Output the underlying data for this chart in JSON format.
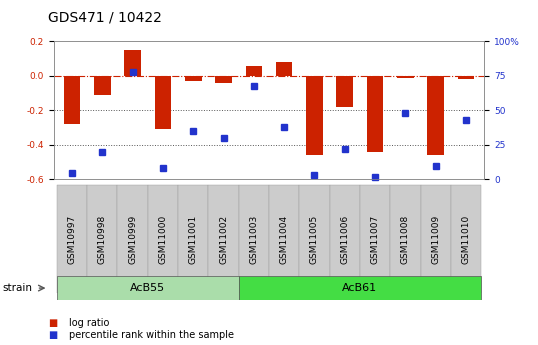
{
  "title": "GDS471 / 10422",
  "samples": [
    "GSM10997",
    "GSM10998",
    "GSM10999",
    "GSM11000",
    "GSM11001",
    "GSM11002",
    "GSM11003",
    "GSM11004",
    "GSM11005",
    "GSM11006",
    "GSM11007",
    "GSM11008",
    "GSM11009",
    "GSM11010"
  ],
  "log_ratio": [
    -0.28,
    -0.11,
    0.15,
    -0.31,
    -0.03,
    -0.04,
    0.06,
    0.08,
    -0.46,
    -0.18,
    -0.44,
    -0.01,
    -0.46,
    -0.02
  ],
  "percentile_rank": [
    5,
    20,
    78,
    8,
    35,
    30,
    68,
    38,
    3,
    22,
    2,
    48,
    10,
    43
  ],
  "groups": [
    {
      "name": "AcB55",
      "start": 0,
      "end": 6,
      "color": "#aaddaa"
    },
    {
      "name": "AcB61",
      "start": 6,
      "end": 14,
      "color": "#44dd44"
    }
  ],
  "ylim_left": [
    -0.6,
    0.2
  ],
  "ylim_right": [
    0,
    100
  ],
  "yticks_left": [
    -0.6,
    -0.4,
    -0.2,
    0.0,
    0.2
  ],
  "yticks_right": [
    0,
    25,
    50,
    75,
    100
  ],
  "bar_color": "#cc2200",
  "dot_color": "#2233cc",
  "hline_color": "#cc2200",
  "dotline_color": "#555555",
  "plot_bg": "#ffffff",
  "xlabel_bg": "#cccccc",
  "legend_items": [
    {
      "label": "log ratio",
      "color": "#cc2200"
    },
    {
      "label": "percentile rank within the sample",
      "color": "#2233cc"
    }
  ],
  "group_label": "strain",
  "title_fontsize": 10,
  "tick_fontsize": 6.5,
  "label_fontsize": 7.5,
  "bar_width": 0.55
}
